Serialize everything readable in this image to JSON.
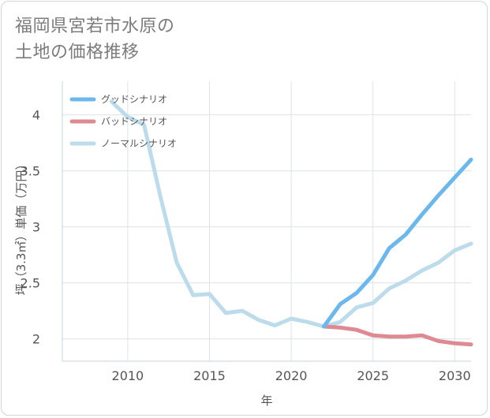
{
  "title_lines": [
    "福岡県宮若市水原の",
    "土地の価格推移"
  ],
  "chart_data": {
    "type": "line",
    "title": "福岡県宮若市水原の土地の価格推移",
    "xlabel": "年",
    "ylabel": "坪（3.3㎡）単価（万円）",
    "xlim": [
      2006,
      2031
    ],
    "ylim": [
      1.8,
      4.3
    ],
    "xticks": [
      2010,
      2015,
      2020,
      2025,
      2030
    ],
    "yticks": [
      2,
      2.5,
      3,
      3.5,
      4
    ],
    "xtick_labels": [
      "2010",
      "2015",
      "2020",
      "2025",
      "2030"
    ],
    "ytick_labels": [
      "2",
      "2.5",
      "3",
      "3.5",
      "4"
    ],
    "legend_position": "top-left",
    "series": [
      {
        "name": "グッドシナリオ",
        "color": "#6cb8ec",
        "x": [
          2022,
          2023,
          2024,
          2025,
          2026,
          2027,
          2028,
          2029,
          2030,
          2031
        ],
        "values": [
          2.11,
          2.31,
          2.41,
          2.57,
          2.81,
          2.93,
          3.11,
          3.28,
          3.44,
          3.6
        ]
      },
      {
        "name": "バッドシナリオ",
        "color": "#dd8a93",
        "x": [
          2022,
          2023,
          2024,
          2025,
          2026,
          2027,
          2028,
          2029,
          2030,
          2031
        ],
        "values": [
          2.11,
          2.1,
          2.08,
          2.03,
          2.02,
          2.02,
          2.03,
          1.98,
          1.96,
          1.95
        ]
      },
      {
        "name": "ノーマルシナリオ",
        "color": "#bcdcec",
        "x": [
          2009,
          2010,
          2011,
          2012,
          2013,
          2014,
          2015,
          2016,
          2017,
          2018,
          2019,
          2020,
          2021,
          2022,
          2023,
          2024,
          2025,
          2026,
          2027,
          2028,
          2029,
          2030,
          2031
        ],
        "values": [
          4.12,
          3.98,
          3.91,
          3.27,
          2.68,
          2.39,
          2.4,
          2.23,
          2.25,
          2.17,
          2.12,
          2.18,
          2.15,
          2.11,
          2.15,
          2.28,
          2.32,
          2.45,
          2.52,
          2.61,
          2.68,
          2.79,
          2.85
        ]
      }
    ]
  }
}
